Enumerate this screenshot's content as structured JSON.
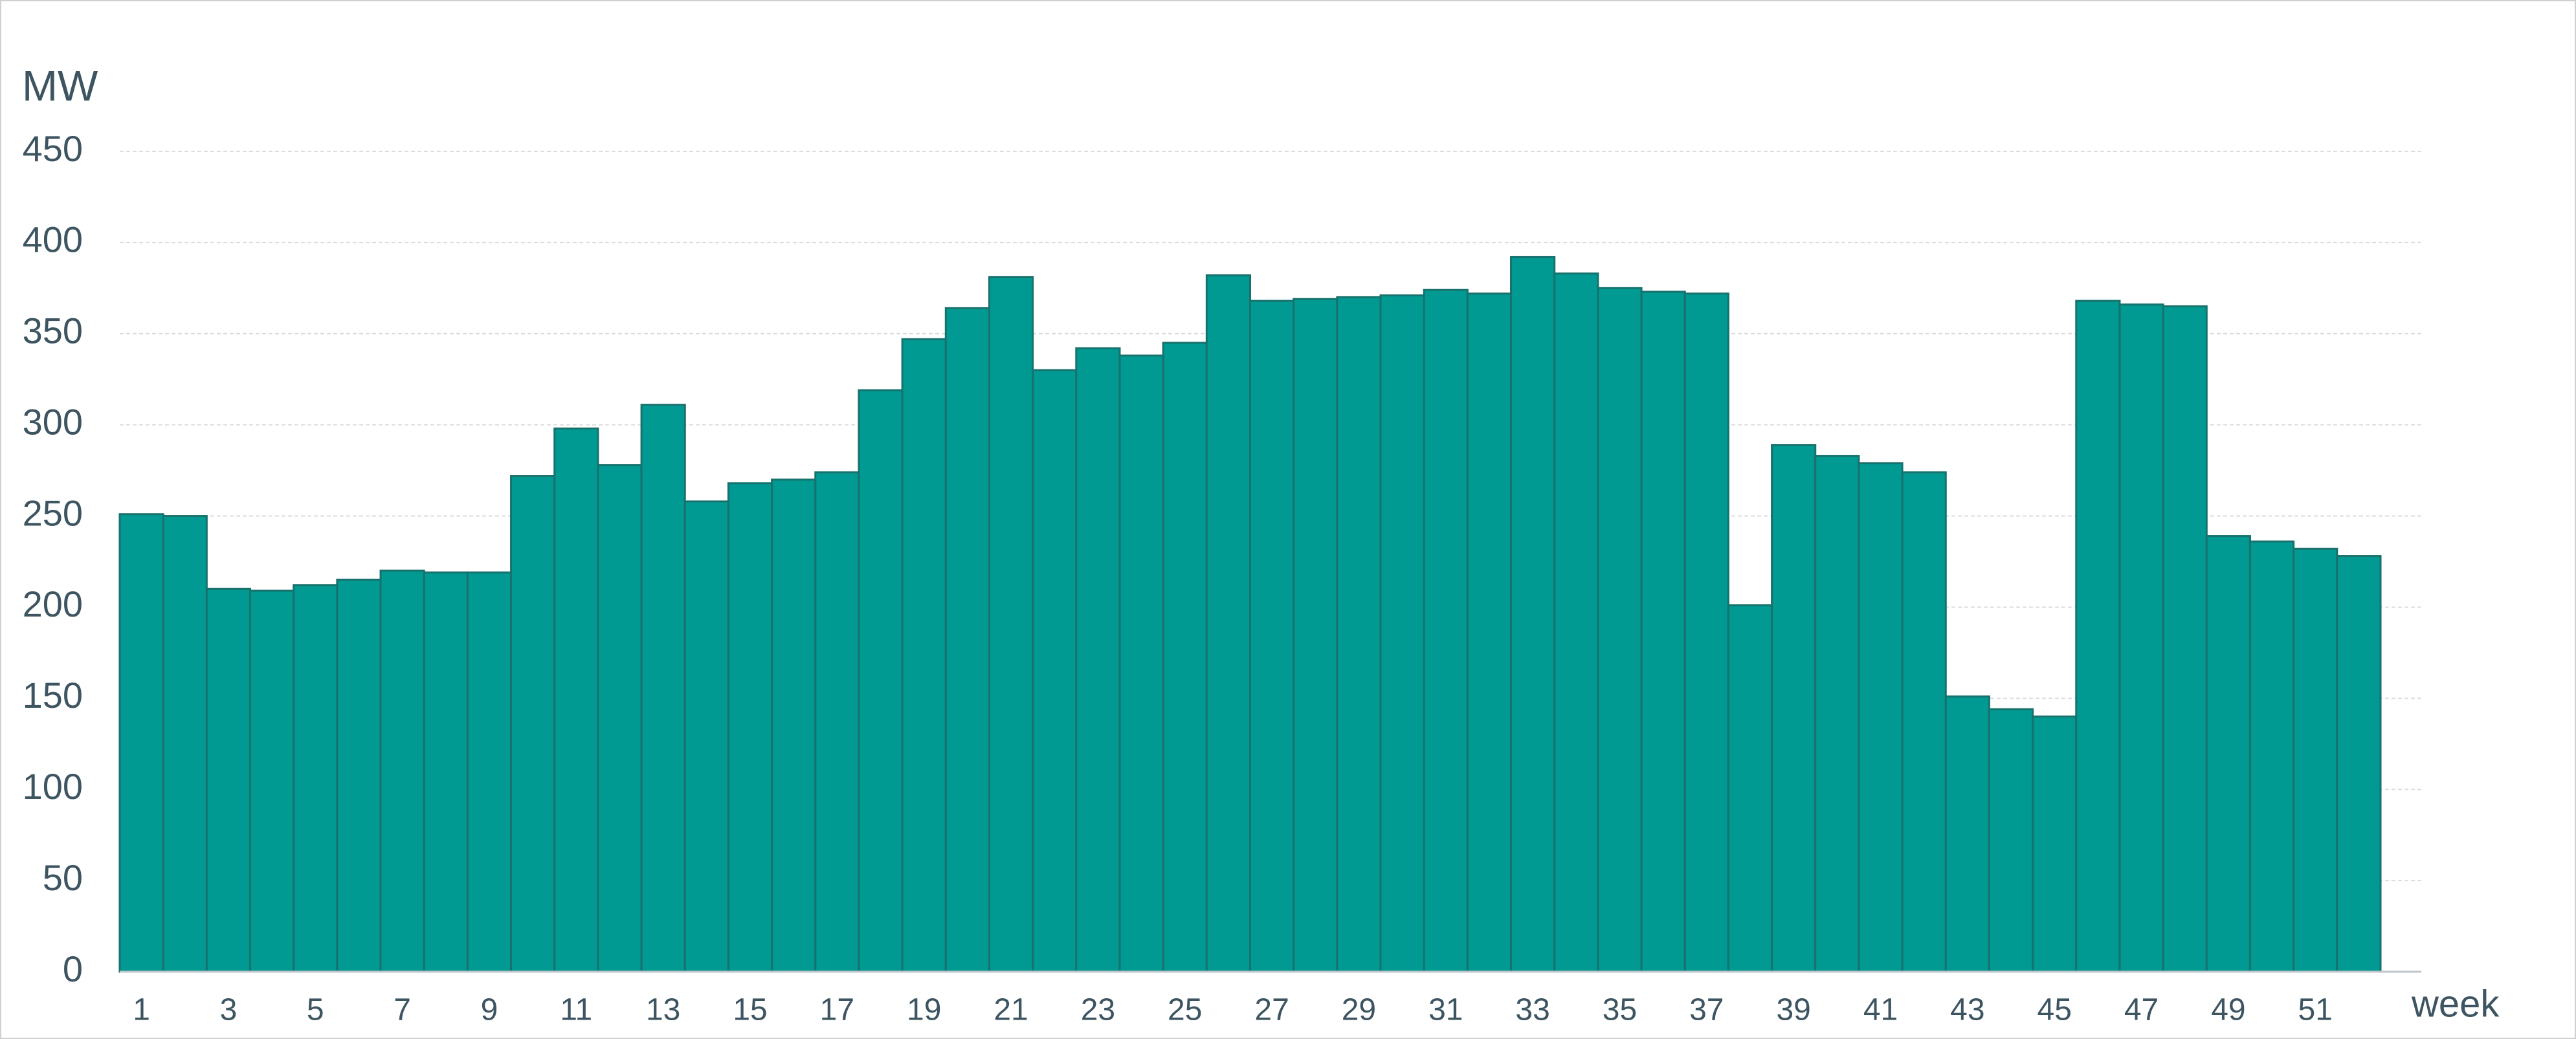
{
  "chart_data": {
    "type": "bar",
    "y_label": "MW",
    "x_label": "week",
    "categories": [
      "1",
      null,
      "3",
      null,
      "5",
      null,
      "7",
      null,
      "9",
      null,
      "11",
      null,
      "13",
      null,
      "15",
      null,
      "17",
      null,
      "19",
      null,
      "21",
      null,
      "23",
      null,
      "25",
      null,
      "27",
      null,
      "29",
      null,
      "31",
      null,
      "33",
      null,
      "35",
      null,
      "37",
      null,
      "39",
      null,
      "41",
      null,
      "43",
      null,
      "45",
      null,
      "47",
      null,
      "49",
      null,
      "51",
      null
    ],
    "values": [
      251,
      250,
      210,
      209,
      212,
      215,
      220,
      219,
      219,
      272,
      298,
      278,
      311,
      258,
      268,
      270,
      274,
      319,
      347,
      364,
      381,
      330,
      342,
      338,
      345,
      382,
      368,
      369,
      370,
      371,
      374,
      372,
      392,
      383,
      375,
      373,
      372,
      201,
      289,
      283,
      279,
      274,
      151,
      144,
      140,
      368,
      366,
      365,
      239,
      236,
      232,
      228
    ],
    "color": "#009a93",
    "ylim": [
      0,
      450
    ],
    "yticks": [
      0,
      50,
      100,
      150,
      200,
      250,
      300,
      350,
      400,
      450
    ],
    "grid": true
  }
}
